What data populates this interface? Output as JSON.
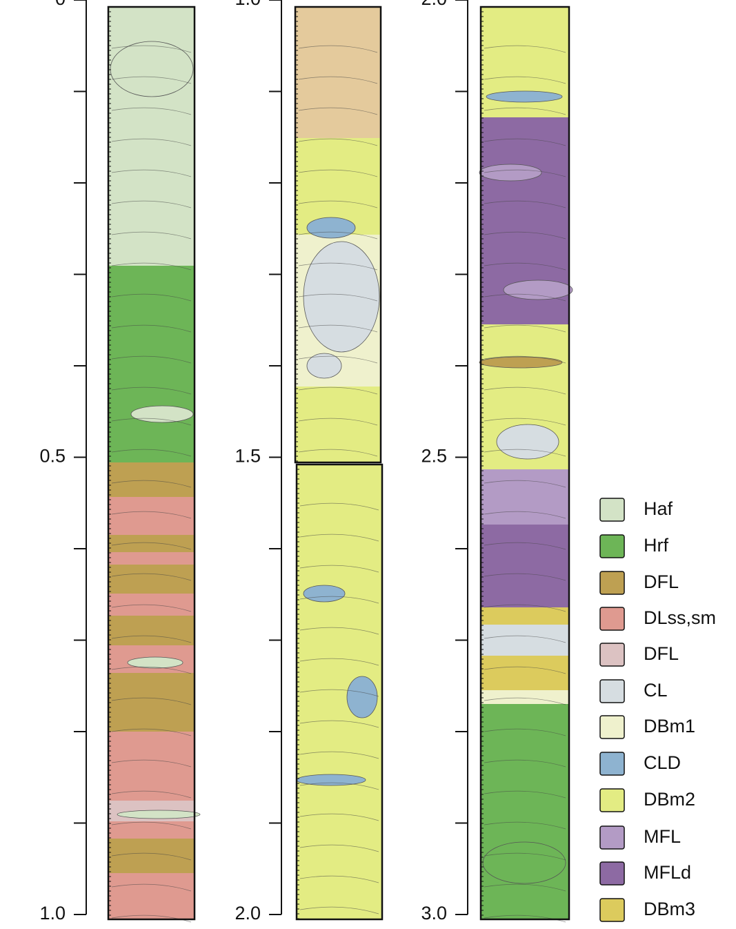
{
  "depth_axes": [
    {
      "labels": [
        "0",
        "0.5",
        "1.0"
      ]
    },
    {
      "labels": [
        "1.0",
        "1.5",
        "2.0"
      ]
    },
    {
      "labels": [
        "2.0",
        "2.5",
        "3.0"
      ]
    }
  ],
  "legend": [
    {
      "label": "Haf",
      "color": "#d3e3c6"
    },
    {
      "label": "Hrf",
      "color": "#6db557"
    },
    {
      "label": "DFL",
      "color": "#bea052"
    },
    {
      "label": "DLss,sm",
      "color": "#df9a90"
    },
    {
      "label": "DFL",
      "color": "#dcc2c2"
    },
    {
      "label": "CL",
      "color": "#d6dde1"
    },
    {
      "label": "DBm1",
      "color": "#eff1cd"
    },
    {
      "label": "CLD",
      "color": "#8eb3d0"
    },
    {
      "label": "DBm2",
      "color": "#e3ec83"
    },
    {
      "label": "MFL",
      "color": "#b39bc5"
    },
    {
      "label": "MFLd",
      "color": "#8d6aa3"
    },
    {
      "label": "DBm3",
      "color": "#dccb5d"
    }
  ]
}
